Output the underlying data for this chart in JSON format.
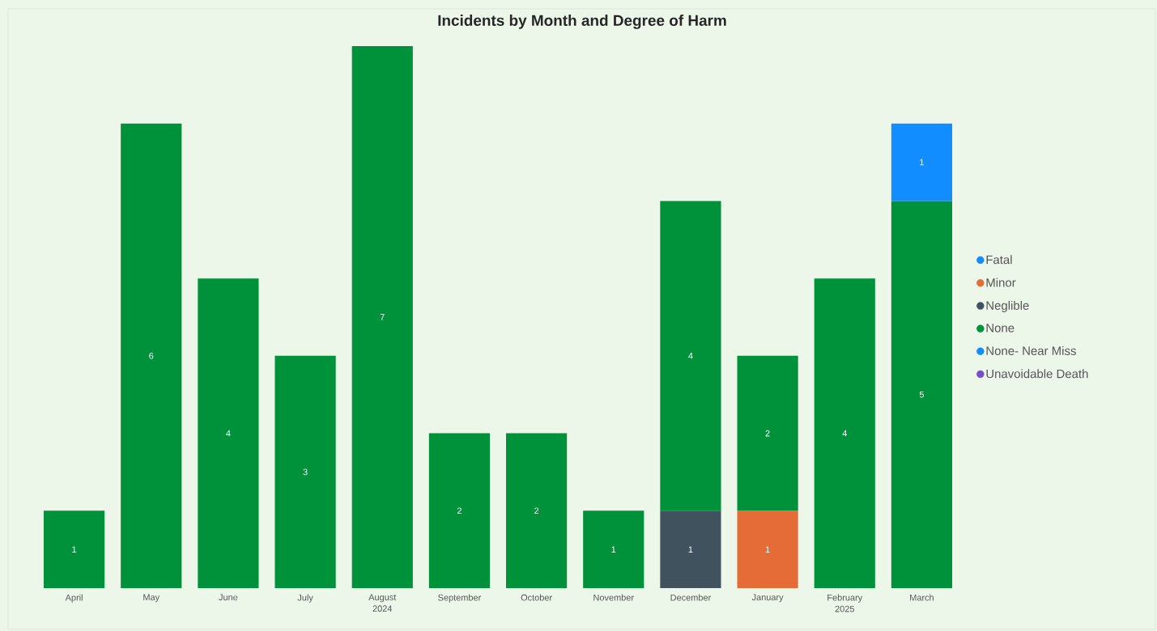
{
  "chart_data": {
    "type": "bar",
    "title": "Incidents by Month and Degree of Harm",
    "stacked": true,
    "data_labels": true,
    "legend": "right",
    "categories": [
      "April",
      "May",
      "June",
      "July",
      "August 2024",
      "September",
      "October",
      "November",
      "December",
      "January",
      "February 2025",
      "March"
    ],
    "series": [
      {
        "name": "Fatal",
        "color": "#118dff",
        "values": [
          null,
          null,
          null,
          null,
          null,
          null,
          null,
          null,
          null,
          null,
          null,
          null
        ]
      },
      {
        "name": "Minor",
        "color": "#e66c37",
        "values": [
          null,
          null,
          null,
          null,
          null,
          null,
          null,
          null,
          null,
          1,
          null,
          null
        ]
      },
      {
        "name": "Neglible",
        "color": "#41525f",
        "values": [
          null,
          null,
          null,
          null,
          null,
          null,
          null,
          null,
          1,
          null,
          null,
          null
        ]
      },
      {
        "name": "None",
        "color": "#00923a",
        "values": [
          1,
          6,
          4,
          3,
          7,
          2,
          2,
          1,
          4,
          2,
          4,
          5
        ]
      },
      {
        "name": "None- Near Miss",
        "color": "#118dff",
        "values": [
          null,
          null,
          null,
          null,
          null,
          null,
          null,
          null,
          null,
          null,
          null,
          1
        ]
      },
      {
        "name": "Unavoidable Death",
        "color": "#744ec2",
        "values": [
          null,
          null,
          null,
          null,
          null,
          null,
          null,
          null,
          null,
          null,
          null,
          null
        ]
      }
    ]
  }
}
